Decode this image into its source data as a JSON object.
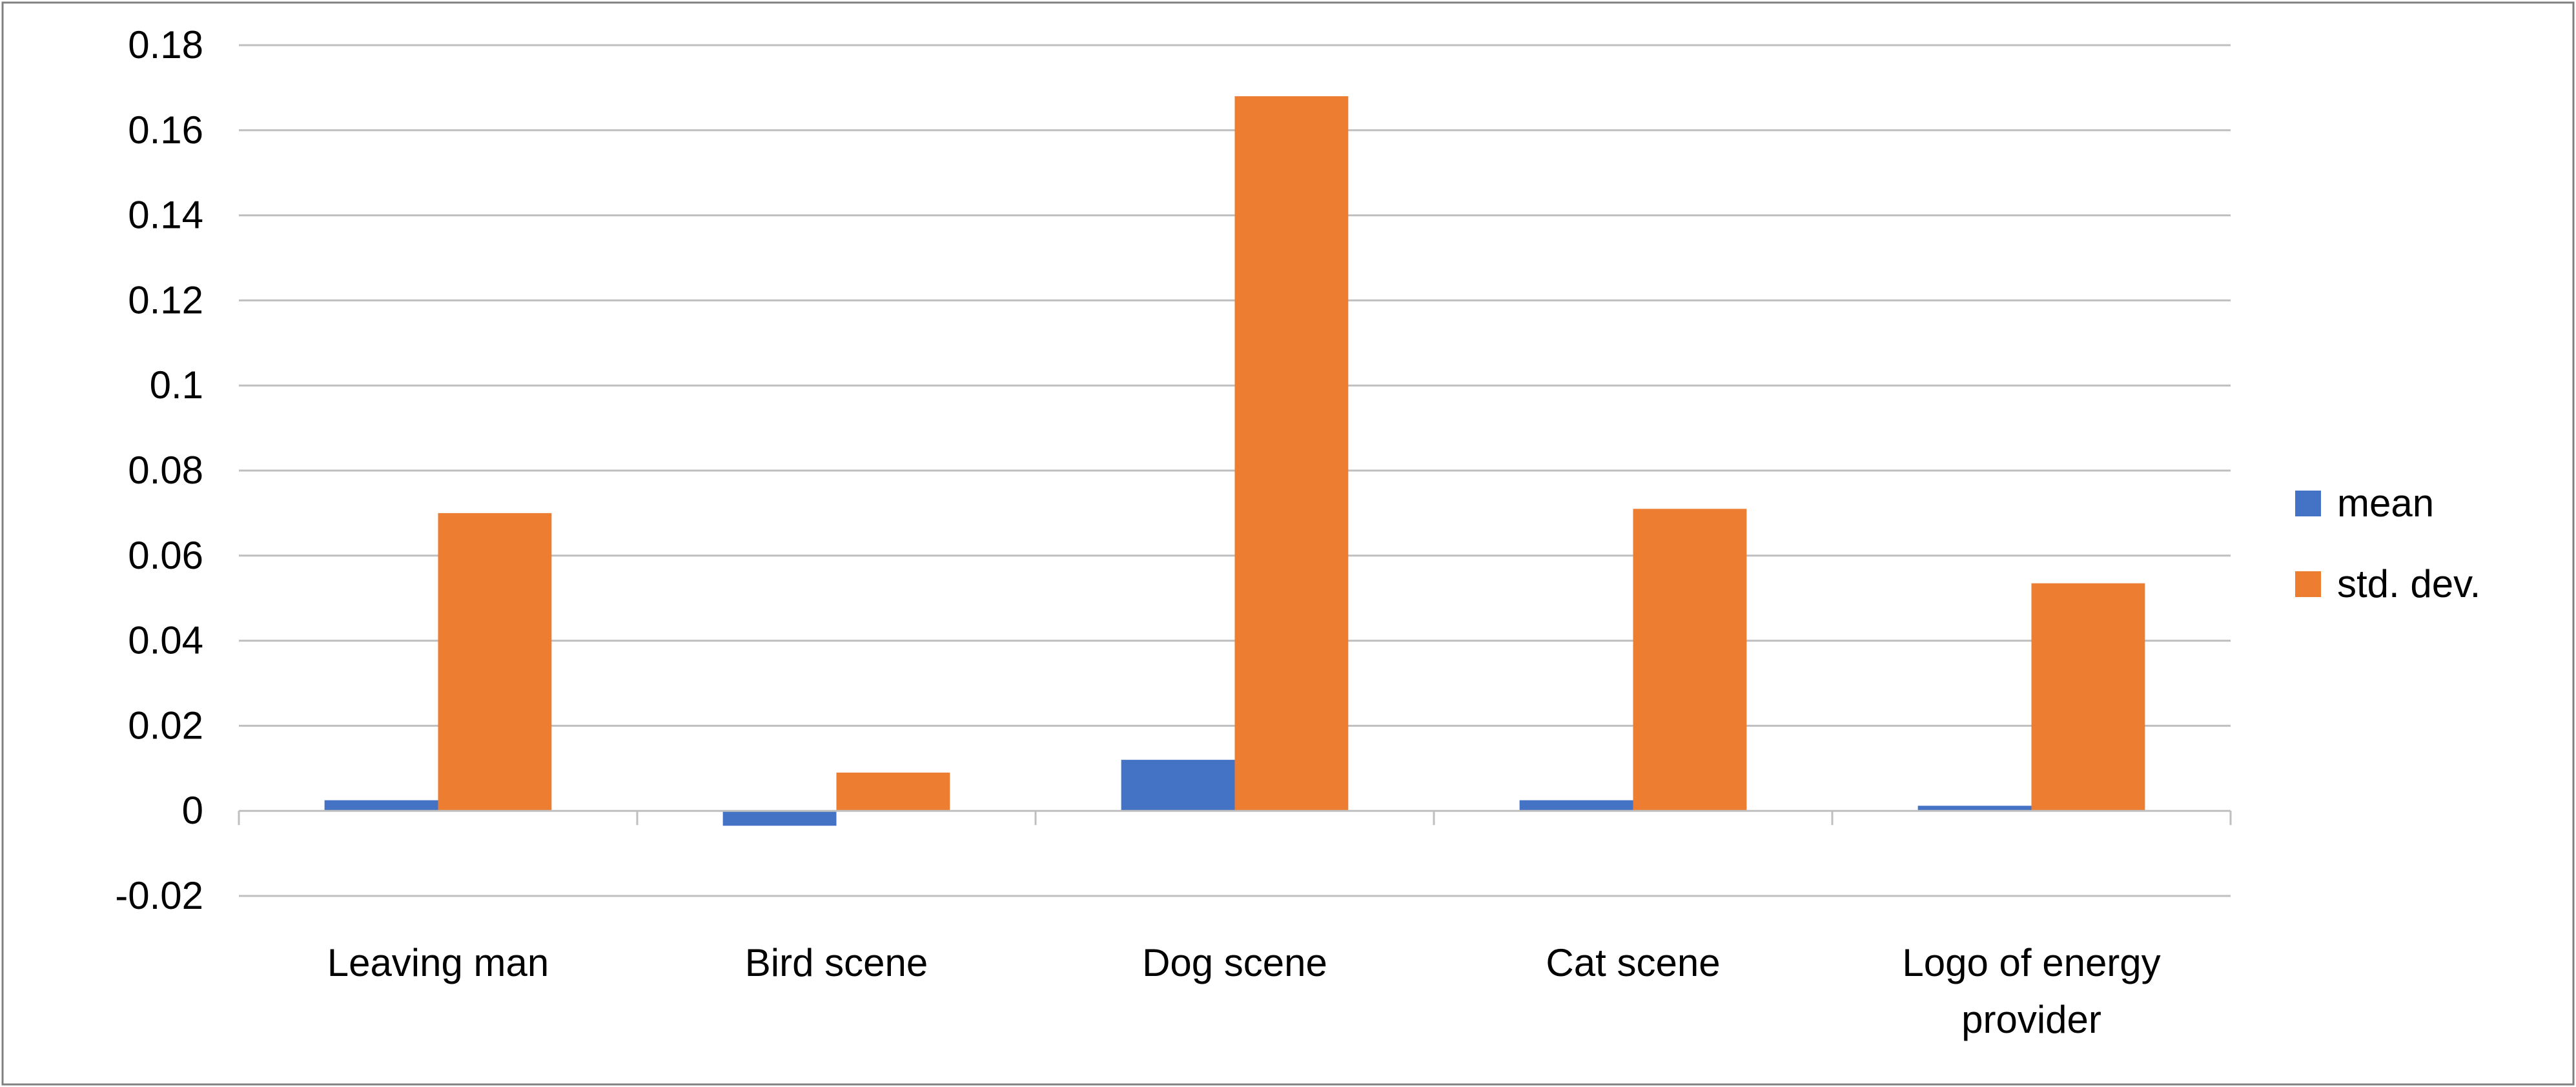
{
  "chart_data": {
    "type": "bar",
    "categories": [
      [
        "Leaving man"
      ],
      [
        "Bird scene"
      ],
      [
        "Dog scene"
      ],
      [
        "Cat scene"
      ],
      [
        "Logo of energy",
        "provider"
      ]
    ],
    "series": [
      {
        "name": "mean",
        "color": "#4472c4",
        "values": [
          0.0025,
          -0.0035,
          0.012,
          0.0025,
          0.0012
        ]
      },
      {
        "name": "std. dev.",
        "color": "#ed7d31",
        "values": [
          0.07,
          0.009,
          0.168,
          0.071,
          0.0535
        ]
      }
    ],
    "ylim": [
      -0.02,
      0.18
    ],
    "yticks": [
      "0.18",
      "0.16",
      "0.14",
      "0.12",
      "0.1",
      "0.08",
      "0.06",
      "0.04",
      "0.02",
      "0",
      "-0.02"
    ],
    "grid": true,
    "legend": "right"
  }
}
